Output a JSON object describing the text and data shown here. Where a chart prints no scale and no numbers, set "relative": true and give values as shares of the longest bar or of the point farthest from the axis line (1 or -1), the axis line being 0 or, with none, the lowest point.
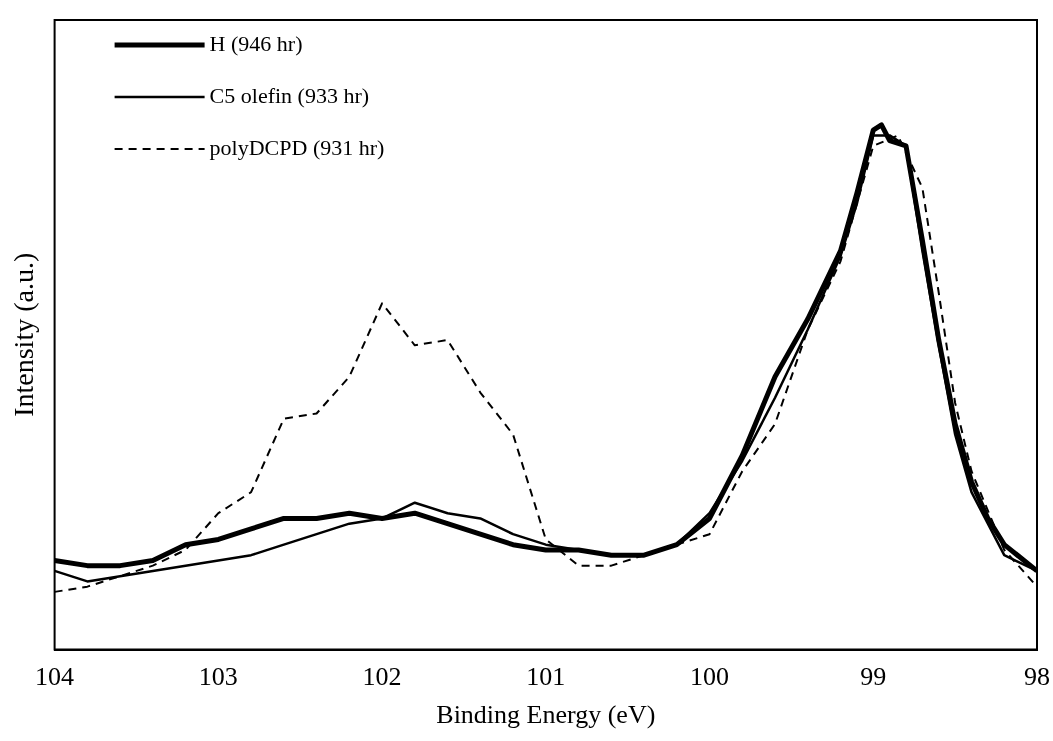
{
  "chart_data": {
    "type": "line",
    "xlabel": "Binding Energy (eV)",
    "ylabel": "Intensity (a.u.)",
    "relative": true,
    "xlim": [
      104,
      98
    ],
    "xticks": [
      104,
      103,
      102,
      101,
      100,
      99,
      98
    ],
    "grid": false,
    "legend": "top left",
    "marker": "none",
    "series": [
      {
        "name": "H (946 hr)",
        "color": "#000000",
        "line_style": "solid",
        "x": [
          104,
          103.8,
          103.6,
          103.4,
          103.2,
          103,
          102.8,
          102.6,
          102.4,
          102.2,
          102,
          101.8,
          101.6,
          101.4,
          101.2,
          101,
          100.8,
          100.6,
          100.4,
          100.2,
          100,
          99.8,
          99.6,
          99.4,
          99.2,
          99.1,
          99,
          98.95,
          98.9,
          98.8,
          98.7,
          98.6,
          98.5,
          98.4,
          98.3,
          98.2,
          98
        ],
        "values": [
          0.17,
          0.16,
          0.16,
          0.17,
          0.2,
          0.21,
          0.23,
          0.25,
          0.25,
          0.26,
          0.25,
          0.26,
          0.24,
          0.22,
          0.2,
          0.19,
          0.19,
          0.18,
          0.18,
          0.2,
          0.25,
          0.37,
          0.52,
          0.63,
          0.76,
          0.87,
          0.99,
          1,
          0.97,
          0.96,
          0.78,
          0.59,
          0.43,
          0.32,
          0.25,
          0.2,
          0.15
        ]
      },
      {
        "name": "C5 olefin (933 hr)",
        "color": "#000000",
        "line_style": "solid",
        "x": [
          104,
          103.8,
          103.6,
          103.4,
          103.2,
          103,
          102.8,
          102.6,
          102.4,
          102.2,
          102,
          101.8,
          101.6,
          101.4,
          101.2,
          101,
          100.8,
          100.6,
          100.4,
          100.2,
          100,
          99.8,
          99.6,
          99.4,
          99.2,
          99.1,
          99,
          98.9,
          98.8,
          98.7,
          98.6,
          98.5,
          98.4,
          98.2,
          98
        ],
        "values": [
          0.15,
          0.13,
          0.14,
          0.15,
          0.16,
          0.17,
          0.18,
          0.2,
          0.22,
          0.24,
          0.25,
          0.28,
          0.26,
          0.25,
          0.22,
          0.2,
          0.19,
          0.18,
          0.18,
          0.2,
          0.26,
          0.36,
          0.48,
          0.61,
          0.75,
          0.85,
          0.98,
          0.98,
          0.96,
          0.76,
          0.58,
          0.41,
          0.3,
          0.18,
          0.15
        ]
      },
      {
        "name": "polyDCPD (931 hr)",
        "color": "#000000",
        "line_style": "dashed",
        "x": [
          104,
          103.8,
          103.6,
          103.4,
          103.2,
          103,
          102.8,
          102.6,
          102.4,
          102.2,
          102,
          101.8,
          101.6,
          101.4,
          101.2,
          101,
          100.8,
          100.6,
          100.4,
          100.2,
          100,
          99.8,
          99.6,
          99.4,
          99.2,
          99,
          98.85,
          98.7,
          98.6,
          98.5,
          98.4,
          98.2,
          98
        ],
        "values": [
          0.11,
          0.12,
          0.14,
          0.16,
          0.19,
          0.26,
          0.3,
          0.44,
          0.45,
          0.52,
          0.66,
          0.58,
          0.59,
          0.49,
          0.41,
          0.21,
          0.16,
          0.16,
          0.18,
          0.2,
          0.22,
          0.34,
          0.43,
          0.61,
          0.74,
          0.96,
          0.98,
          0.88,
          0.68,
          0.47,
          0.34,
          0.19,
          0.12
        ]
      }
    ]
  }
}
